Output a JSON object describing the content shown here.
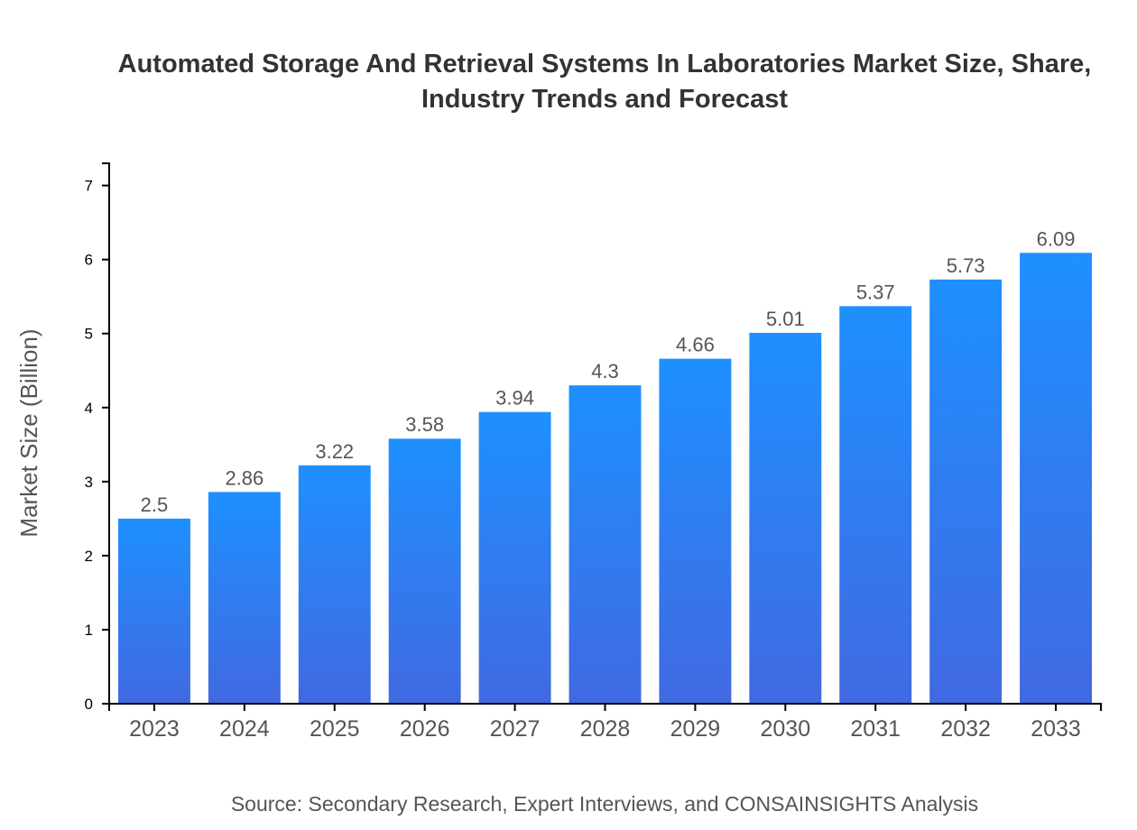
{
  "chart_data": {
    "type": "bar",
    "title_lines": [
      "Automated Storage And Retrieval Systems In Laboratories Market Size, Share,",
      "Industry Trends and Forecast"
    ],
    "categories": [
      "2023",
      "2024",
      "2025",
      "2026",
      "2027",
      "2028",
      "2029",
      "2030",
      "2031",
      "2032",
      "2033"
    ],
    "values": [
      2.5,
      2.86,
      3.22,
      3.58,
      3.94,
      4.3,
      4.66,
      5.01,
      5.37,
      5.73,
      6.09
    ],
    "data_labels": [
      "2.5",
      "2.86",
      "3.22",
      "3.58",
      "3.94",
      "4.3",
      "4.66",
      "5.01",
      "5.37",
      "5.73",
      "6.09"
    ],
    "xlabel": "",
    "ylabel": "Market Size (Billion)",
    "ylim": [
      0,
      7.3
    ],
    "yticks": [
      "0",
      "1",
      "2",
      "3",
      "4",
      "5",
      "6",
      "7"
    ],
    "grid": false,
    "bar_gradient": {
      "top": "#1e90ff",
      "bottom": "#4169e1"
    },
    "source": "Source: Secondary Research, Expert Interviews, and CONSAINSIGHTS Analysis"
  }
}
